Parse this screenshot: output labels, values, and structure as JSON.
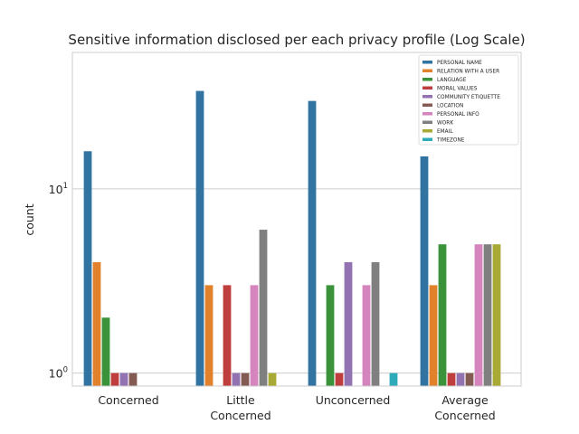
{
  "chart_data": {
    "type": "bar",
    "title": "Sensitive information disclosed per each privacy profile (Log Scale)",
    "xlabel": "",
    "ylabel": "count",
    "yscale": "log",
    "ylim": [
      0.85,
      55
    ],
    "yticks": [
      {
        "value": 1,
        "label": "10",
        "exp": "0"
      },
      {
        "value": 10,
        "label": "10",
        "exp": "1"
      }
    ],
    "grid": true,
    "legend_position": "top-right",
    "categories": [
      {
        "line1": "Concerned",
        "line2": ""
      },
      {
        "line1": "Little",
        "line2": "Concerned"
      },
      {
        "line1": "Unconcerned",
        "line2": ""
      },
      {
        "line1": "Average",
        "line2": "Concerned"
      }
    ],
    "series": [
      {
        "name": "PERSONAL NAME",
        "color": "#3274a1",
        "values": [
          16,
          34,
          30,
          15
        ]
      },
      {
        "name": "RELATION WITH A USER",
        "color": "#e1812c",
        "values": [
          4,
          3,
          0,
          3
        ]
      },
      {
        "name": "LANGUAGE",
        "color": "#3a923a",
        "values": [
          2,
          0,
          3,
          5
        ]
      },
      {
        "name": "MORAL VALUES",
        "color": "#c03d3e",
        "values": [
          1,
          3,
          1,
          1
        ]
      },
      {
        "name": "COMMUNITY ETIQUETTE",
        "color": "#9372b2",
        "values": [
          1,
          1,
          4,
          1
        ]
      },
      {
        "name": "LOCATION",
        "color": "#845b53",
        "values": [
          1,
          1,
          0,
          1
        ]
      },
      {
        "name": "PERSONAL INFO",
        "color": "#d684bd",
        "values": [
          0,
          3,
          3,
          5
        ]
      },
      {
        "name": "WORK",
        "color": "#7f7f7f",
        "values": [
          0,
          6,
          4,
          5
        ]
      },
      {
        "name": "EMAIL",
        "color": "#a9aa35",
        "values": [
          0,
          1,
          0,
          5
        ]
      },
      {
        "name": "TIMEZONE",
        "color": "#2eabb8",
        "values": [
          0,
          0,
          1,
          0
        ]
      }
    ]
  }
}
